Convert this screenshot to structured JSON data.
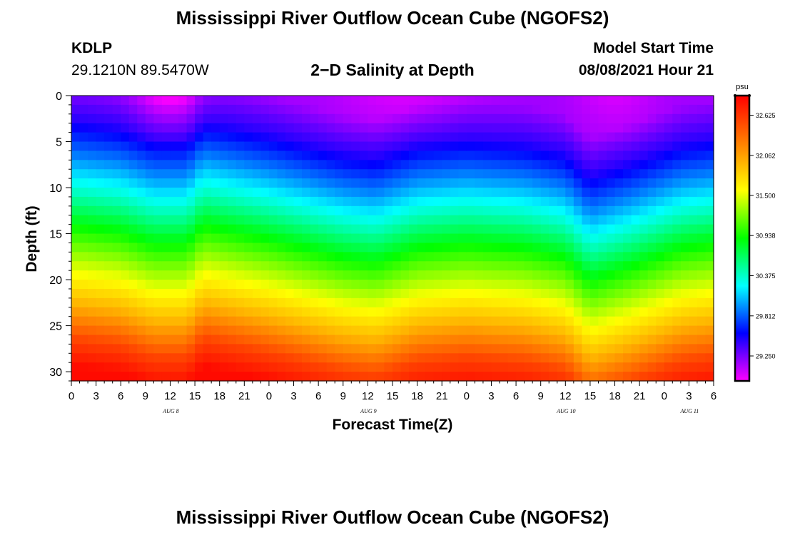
{
  "page": {
    "title_top": "Mississippi River Outflow Ocean Cube (NGOFS2)",
    "title_bottom": "Mississippi River Outflow Ocean Cube (NGOFS2)",
    "station_id": "KDLP",
    "station_coords": "29.1210N  89.5470W",
    "plot_title": "2−D Salinity at Depth",
    "model_start_label": "Model Start Time",
    "model_start_value": "08/08/2021 Hour 21"
  },
  "chart_data": {
    "type": "heatmap",
    "title": "2−D Salinity at Depth",
    "xlabel": "Forecast Time(Z)",
    "ylabel": "Depth (ft)",
    "xlim": [
      0,
      78
    ],
    "ylim": [
      31,
      0
    ],
    "x_ticks": [
      0,
      3,
      6,
      9,
      12,
      15,
      18,
      21,
      24,
      27,
      30,
      33,
      36,
      39,
      42,
      45,
      48,
      51,
      54,
      57,
      60,
      63,
      66,
      69,
      72,
      75,
      78
    ],
    "x_tick_labels": [
      "0",
      "3",
      "6",
      "9",
      "12",
      "15",
      "18",
      "21",
      "0",
      "3",
      "6",
      "9",
      "12",
      "15",
      "18",
      "21",
      "0",
      "3",
      "6",
      "9",
      "12",
      "15",
      "18",
      "21",
      "0",
      "3",
      "6"
    ],
    "y_ticks": [
      0,
      5,
      10,
      15,
      20,
      25,
      30
    ],
    "y_tick_labels": [
      "0",
      "5",
      "10",
      "15",
      "20",
      "25",
      "30"
    ],
    "day_labels": [
      {
        "x": 12,
        "text": "AUG 8"
      },
      {
        "x": 36,
        "text": "AUG 9"
      },
      {
        "x": 60,
        "text": "AUG 10"
      },
      {
        "x": 75,
        "text": "AUG 11"
      }
    ],
    "colorbar": {
      "unit": "psu",
      "min": 28.9,
      "max": 32.9,
      "tick_values": [
        29.25,
        29.812,
        30.375,
        30.938,
        31.5,
        32.062,
        32.625
      ],
      "tick_labels": [
        "29.250",
        "29.812",
        "30.375",
        "30.938",
        "31.500",
        "32.062",
        "32.625"
      ],
      "colors": [
        "#ff00ff",
        "#0000ff",
        "#00ffff",
        "#00ff00",
        "#ffff00",
        "#ff8000",
        "#ff0000"
      ]
    },
    "grid": {
      "depth_ft": [
        0,
        1,
        2,
        3,
        4,
        5,
        6,
        7,
        8,
        9,
        10,
        11,
        12,
        13,
        14,
        15,
        16,
        17,
        18,
        19,
        20,
        21,
        22,
        23,
        24,
        25,
        26,
        27,
        28,
        29,
        30,
        31
      ],
      "profile_depths_ft": [
        0,
        4,
        8,
        12,
        16,
        20,
        24,
        28,
        31
      ],
      "profile_salinity_psu": [
        29.15,
        29.45,
        29.9,
        30.4,
        30.95,
        31.45,
        31.95,
        32.55,
        32.85
      ],
      "time_hours": [
        0,
        6,
        10,
        14,
        16,
        24,
        33,
        37,
        42,
        48,
        55,
        60,
        63,
        68,
        74,
        78
      ],
      "depth_shift_ft": [
        -1.5,
        -0.8,
        0.5,
        0.5,
        -1.5,
        0.0,
        2.0,
        2.5,
        1.0,
        0.5,
        1.0,
        2.0,
        4.5,
        3.0,
        1.0,
        0.5
      ]
    }
  }
}
